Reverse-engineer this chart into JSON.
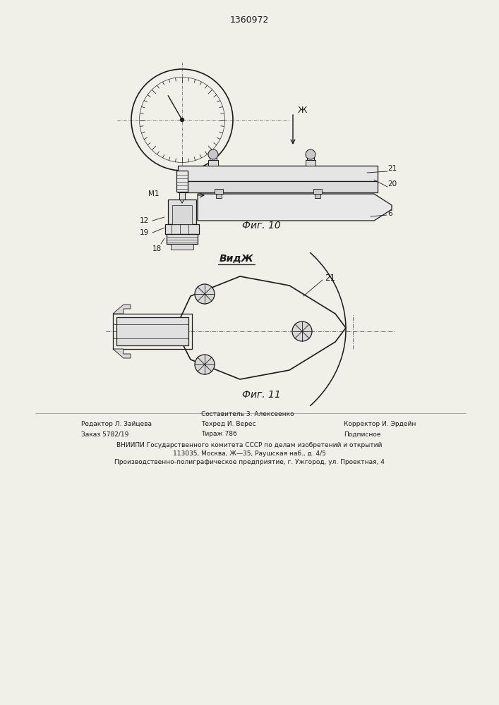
{
  "title": "1360972",
  "fig10_caption": "Фиг. 10",
  "fig11_caption": "Фиг. 11",
  "view_label": "ВидЖ",
  "arrow_label": "Ж",
  "footer_line1_left": "Редактор Л. Зайцева",
  "footer_line2_left": "Заказ 5782/19",
  "footer_line1_center": "Составитель 3. Алексеенко",
  "footer_line2_center": "Техред И. Верес",
  "footer_line3_center": "Тираж 786",
  "footer_line1_right": "Корректор И. Эрдейн",
  "footer_line2_right": "Подписное",
  "footer_vniiipi": "ВНИИПИ Государственного комитета СССР по делам изобретений и открытий",
  "footer_address1": "113035, Москва, Ж—35, Раушская наб., д. 4/5",
  "footer_address2": "Производственно-полиграфическое предприятие, г. Ужгород, ул. Проектная, 4",
  "bg_color": "#f0efe8",
  "line_color": "#1a1a1a",
  "line_width": 0.9
}
